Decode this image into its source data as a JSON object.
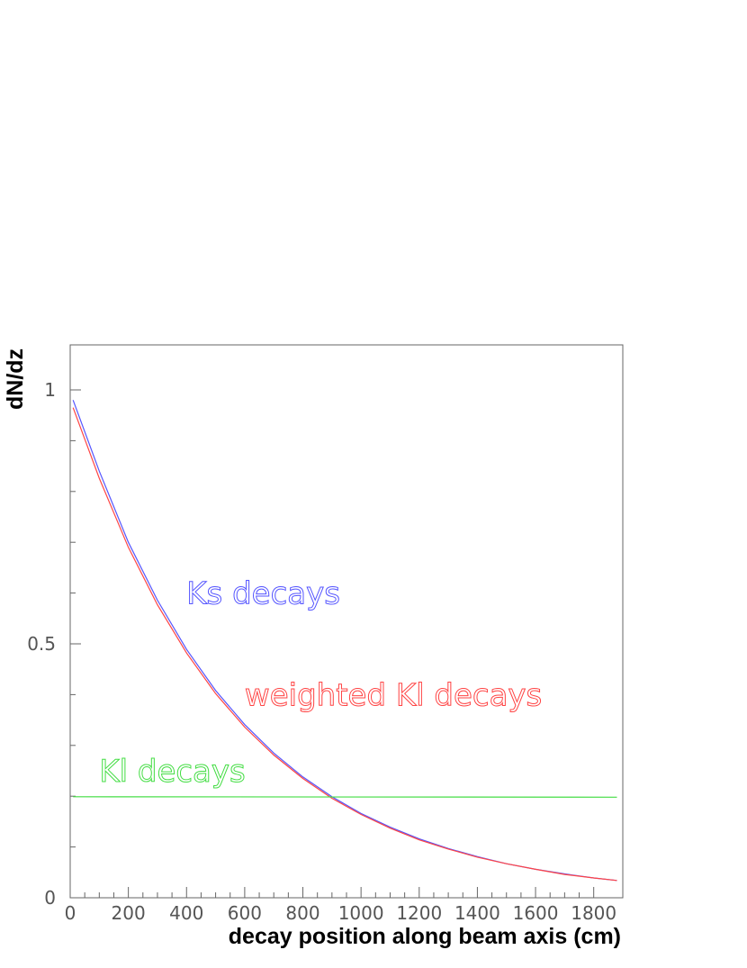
{
  "chart_data": {
    "type": "line",
    "title": "",
    "xlabel": "decay position along beam axis (cm)",
    "ylabel": "dN/dz",
    "xlim": [
      0,
      1900
    ],
    "ylim": [
      0,
      1.1
    ],
    "x_ticks": [
      0,
      200,
      400,
      600,
      800,
      1000,
      1200,
      1400,
      1600,
      1800
    ],
    "x_tick_labels": [
      "0",
      "200",
      "400",
      "600",
      "800",
      "1000",
      "1200",
      "1400",
      "1600",
      "1800"
    ],
    "y_ticks": [
      0,
      0.5,
      1
    ],
    "y_tick_labels": [
      "0",
      "0.5",
      "1"
    ],
    "grid": false,
    "series": [
      {
        "name": "Ks decays",
        "color": "#5555ff",
        "x": [
          10,
          100,
          200,
          300,
          400,
          500,
          600,
          700,
          800,
          900,
          1000,
          1100,
          1200,
          1300,
          1400,
          1500,
          1600,
          1700,
          1800,
          1880
        ],
        "y": [
          0.98,
          0.84,
          0.7,
          0.586,
          0.489,
          0.408,
          0.341,
          0.285,
          0.238,
          0.199,
          0.166,
          0.139,
          0.116,
          0.097,
          0.081,
          0.067,
          0.056,
          0.047,
          0.039,
          0.034
        ]
      },
      {
        "name": "weighted Kl decays",
        "color": "#ff4444",
        "x": [
          10,
          100,
          200,
          300,
          400,
          500,
          600,
          700,
          800,
          900,
          1000,
          1100,
          1200,
          1300,
          1400,
          1500,
          1600,
          1700,
          1800,
          1880
        ],
        "y": [
          0.965,
          0.826,
          0.69,
          0.577,
          0.482,
          0.402,
          0.336,
          0.281,
          0.235,
          0.196,
          0.164,
          0.137,
          0.114,
          0.096,
          0.08,
          0.067,
          0.056,
          0.046,
          0.039,
          0.034
        ]
      },
      {
        "name": "Kl decays",
        "color": "#44dd44",
        "x": [
          10,
          1880
        ],
        "y": [
          0.199,
          0.198
        ]
      }
    ],
    "annotations": [
      {
        "text": "Ks decays",
        "color": "#5555ff",
        "x": 400,
        "y": 0.6
      },
      {
        "text": "weighted Kl decays",
        "color": "#ff4444",
        "x": 600,
        "y": 0.4
      },
      {
        "text": "Kl decays",
        "color": "#44dd44",
        "x": 100,
        "y": 0.25
      }
    ]
  }
}
